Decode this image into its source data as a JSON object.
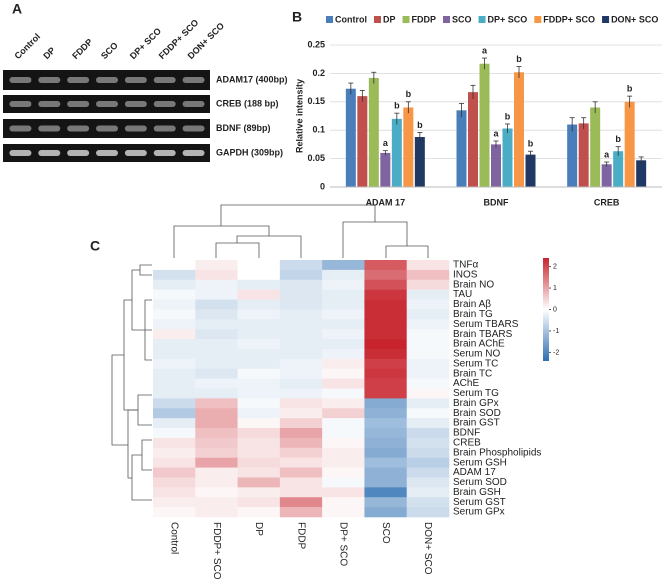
{
  "panel_labels": [
    "A",
    "B",
    "C"
  ],
  "gel": {
    "lanes": [
      "Control",
      "DP",
      "FDDP",
      "SCO",
      "DP+ SCO",
      "FDDP+ SCO",
      "DON+ SCO"
    ],
    "bands": [
      "ADAM17 (400bp)",
      "CREB (188 bp)",
      "BDNF (89bp)",
      "GAPDH (309bp)"
    ]
  },
  "chart_data": [
    {
      "type": "bar",
      "y_label": "Relative intensity",
      "categories": [
        "ADAM 17",
        "BDNF",
        "CREB"
      ],
      "ylim": [
        0,
        0.25
      ],
      "yticks": [
        0,
        0.05,
        0.1,
        0.15,
        0.2,
        0.25
      ],
      "grid": true,
      "series": [
        {
          "name": "Control",
          "color": "#4a7ebb",
          "values": [
            0.173,
            0.135,
            0.11
          ],
          "errors": [
            0.01,
            0.012,
            0.012
          ],
          "annotations": [
            null,
            null,
            null
          ]
        },
        {
          "name": "DP",
          "color": "#c0504d",
          "values": [
            0.16,
            0.167,
            0.112
          ],
          "errors": [
            0.01,
            0.012,
            0.01
          ],
          "annotations": [
            null,
            null,
            null
          ]
        },
        {
          "name": "FDDP",
          "color": "#9bbb59",
          "values": [
            0.192,
            0.217,
            0.14
          ],
          "errors": [
            0.01,
            0.01,
            0.01
          ],
          "annotations": [
            null,
            "a",
            null
          ]
        },
        {
          "name": "SCO",
          "color": "#8064a2",
          "values": [
            0.06,
            0.075,
            0.04
          ],
          "errors": [
            0.004,
            0.006,
            0.004
          ],
          "annotations": [
            "a",
            "a",
            "a"
          ]
        },
        {
          "name": "DP+ SCO",
          "color": "#4bacc6",
          "values": [
            0.12,
            0.103,
            0.063
          ],
          "errors": [
            0.01,
            0.008,
            0.008
          ],
          "annotations": [
            "b",
            "b",
            "b"
          ]
        },
        {
          "name": "FDDP+ SCO",
          "color": "#f79646",
          "values": [
            0.14,
            0.202,
            0.15
          ],
          "errors": [
            0.01,
            0.01,
            0.01
          ],
          "annotations": [
            "b",
            "b",
            "b"
          ]
        },
        {
          "name": "DON+ SCO",
          "color": "#1f3864",
          "values": [
            0.088,
            0.057,
            0.047
          ],
          "errors": [
            0.008,
            0.006,
            0.006
          ],
          "annotations": [
            "b",
            "b",
            null
          ]
        }
      ]
    },
    {
      "type": "heatmap",
      "columns": [
        "Control",
        "FDDP+ SCO",
        "DP",
        "FDDP",
        "DP+ SCO",
        "SCO",
        "DON+ SCO"
      ],
      "rows": [
        "TNFα",
        "INOS",
        "Brain NO",
        "TAU",
        "Brain Aβ",
        "Brain TG",
        "Serum TBARS",
        "Brain TBARS",
        "Brain AChE",
        "Serum NO",
        "Serum TC",
        "Brain TC",
        "AChE",
        "Serum TG",
        "Brain GPx",
        "Brain SOD",
        "Brain GST",
        "BDNF",
        "CREB",
        "Brain Phospholipids",
        "Serum GSH",
        "ADAM 17",
        "Serum SOD",
        "Brain GSH",
        "Serum GST",
        "Serum GPx"
      ],
      "values": [
        [
          0,
          0.2,
          0,
          -0.6,
          -1.2,
          1.8,
          0.3
        ],
        [
          -0.5,
          0.3,
          0,
          -0.7,
          -0.3,
          1.6,
          0.7
        ],
        [
          -0.3,
          -0.2,
          -0.3,
          -0.4,
          -0.2,
          1.9,
          0.4
        ],
        [
          -0.1,
          -0.2,
          0.3,
          -0.4,
          -0.3,
          2.2,
          -0.3
        ],
        [
          -0.2,
          -0.5,
          -0.3,
          -0.4,
          -0.3,
          2.3,
          -0.2
        ],
        [
          -0.1,
          -0.4,
          -0.2,
          -0.3,
          -0.2,
          2.3,
          -0.3
        ],
        [
          -0.2,
          -0.3,
          -0.3,
          -0.3,
          -0.3,
          2.3,
          -0.2
        ],
        [
          0.2,
          -0.4,
          -0.3,
          -0.3,
          -0.2,
          2.3,
          -0.1
        ],
        [
          -0.3,
          -0.3,
          -0.2,
          -0.3,
          -0.3,
          2.4,
          -0.1
        ],
        [
          -0.3,
          -0.3,
          -0.3,
          -0.3,
          -0.2,
          2.3,
          -0.1
        ],
        [
          -0.2,
          -0.3,
          -0.3,
          -0.2,
          0.2,
          2.1,
          -0.2
        ],
        [
          -0.3,
          -0.4,
          -0.1,
          -0.2,
          0.1,
          2.2,
          -0.2
        ],
        [
          -0.3,
          -0.2,
          -0.2,
          -0.3,
          0.3,
          2.1,
          -0.1
        ],
        [
          -0.3,
          -0.3,
          -0.2,
          -0.2,
          -0.1,
          2.1,
          0.1
        ],
        [
          -0.6,
          0.7,
          -0.1,
          0.3,
          0.2,
          -1.4,
          -0.3
        ],
        [
          -0.9,
          0.9,
          -0.2,
          0.2,
          0.5,
          -1.3,
          -0.1
        ],
        [
          -0.3,
          0.9,
          0.1,
          0.5,
          -0.1,
          -1.1,
          -0.3
        ],
        [
          -0.1,
          0.7,
          0.4,
          1.0,
          -0.1,
          -1.2,
          -0.6
        ],
        [
          0.3,
          0.6,
          0.3,
          0.8,
          0.1,
          -1.3,
          -0.5
        ],
        [
          0.2,
          0.5,
          0.3,
          0.5,
          0.2,
          -1.4,
          -0.6
        ],
        [
          0.3,
          1.0,
          0.4,
          0.3,
          0.2,
          -1.1,
          -0.8
        ],
        [
          0.6,
          0.2,
          0.3,
          0.7,
          0.1,
          -1.3,
          -0.6
        ],
        [
          0.4,
          0.2,
          0.8,
          0.3,
          -0.1,
          -1.3,
          -0.4
        ],
        [
          0.3,
          0.1,
          0.2,
          0.3,
          0.3,
          -2.0,
          -0.3
        ],
        [
          0.2,
          0.2,
          0.3,
          1.3,
          0.1,
          -1.2,
          -0.5
        ],
        [
          0.1,
          0.2,
          0.1,
          0.8,
          0.1,
          -1.4,
          -0.6
        ]
      ],
      "zlim": [
        -2.4,
        2.4
      ],
      "zticks": [
        2,
        1,
        0,
        -1,
        -2
      ],
      "colors": [
        "#2e6fb2",
        "#ffffff",
        "#c7242d"
      ]
    }
  ]
}
